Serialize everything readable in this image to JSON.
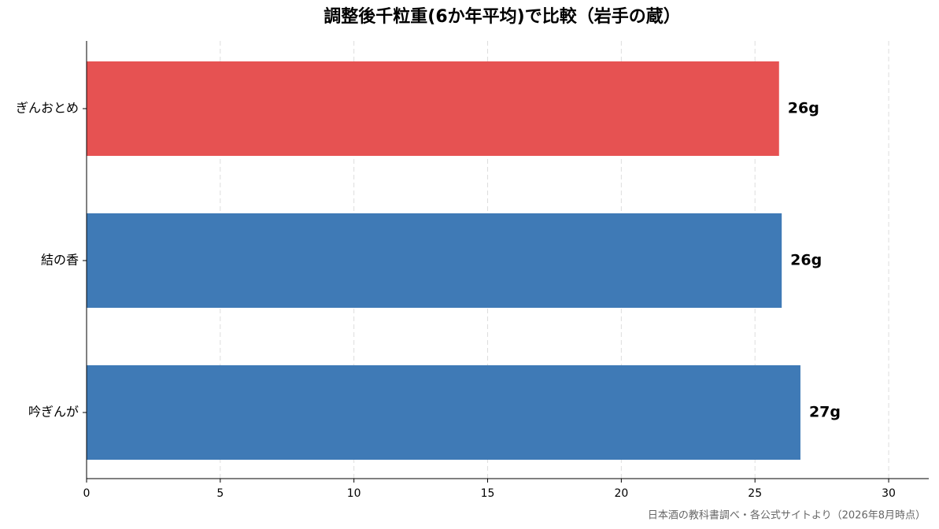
{
  "chart_data": {
    "type": "barh",
    "title": "調整後千粒重(6か年平均)で比較（岩手の蔵）",
    "categories": [
      "ぎんおとめ",
      "結の香",
      "吟ぎんが"
    ],
    "values": [
      25.9,
      26.0,
      26.7
    ],
    "value_labels": [
      "26g",
      "26g",
      "27g"
    ],
    "colors": [
      "#e65252",
      "#3f7ab6",
      "#3f7ab6"
    ],
    "xlim": [
      0,
      31.5
    ],
    "xticks": [
      0,
      5,
      10,
      15,
      20,
      25,
      30
    ],
    "grid": true,
    "source": "日本酒の教科書調べ・各公式サイトより（2026年8月時点）"
  }
}
